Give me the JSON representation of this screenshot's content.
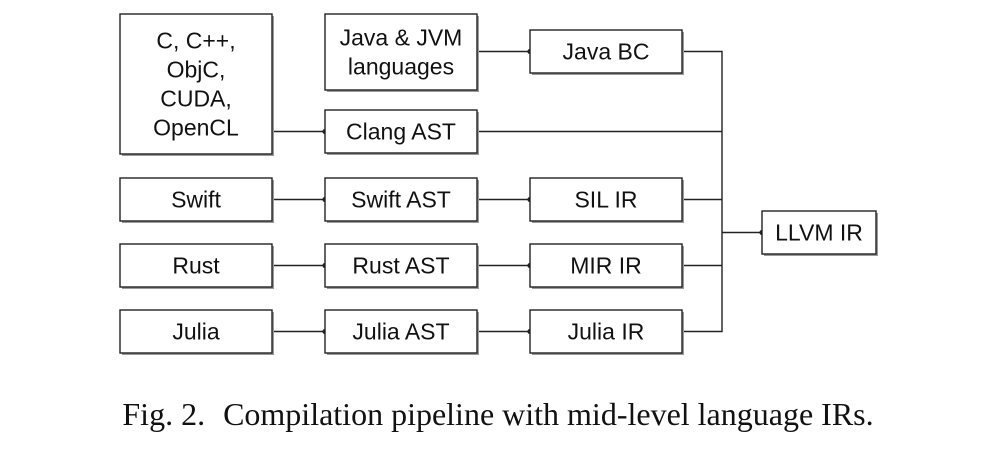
{
  "nodes": {
    "c_family": [
      "C, C++,",
      "ObjC,",
      "CUDA,",
      "OpenCL"
    ],
    "java_langs": [
      "Java & JVM",
      "languages"
    ],
    "java_bc": [
      "Java BC"
    ],
    "clang_ast": [
      "Clang AST"
    ],
    "swift": [
      "Swift"
    ],
    "swift_ast": [
      "Swift AST"
    ],
    "sil_ir": [
      "SIL IR"
    ],
    "rust": [
      "Rust"
    ],
    "rust_ast": [
      "Rust AST"
    ],
    "mir_ir": [
      "MIR IR"
    ],
    "julia": [
      "Julia"
    ],
    "julia_ast": [
      "Julia AST"
    ],
    "julia_ir": [
      "Julia IR"
    ],
    "llvm_ir": [
      "LLVM IR"
    ]
  },
  "caption": {
    "label": "Fig. 2.",
    "text": "Compilation pipeline with mid-level language IRs."
  }
}
